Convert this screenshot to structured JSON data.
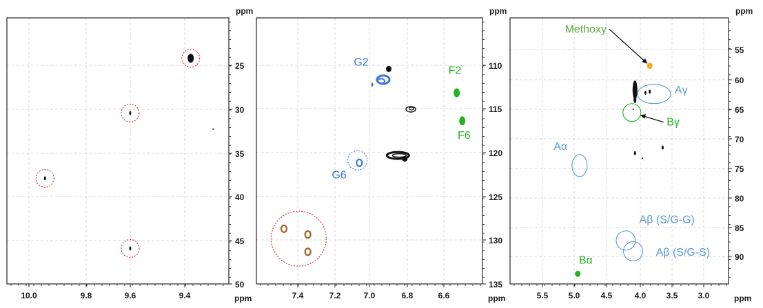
{
  "axis_unit": "ppm",
  "colors": {
    "cross_peak": "#111111",
    "guaiacyl": "#3a78d6",
    "ferulate": "#22b322",
    "sidechain_labels": "#5b9bd5",
    "methoxy_label": "#5aaa3a",
    "methoxy_peak": "#f5a623",
    "aldehyde_peak": "#a0602a",
    "dotted_circles": "#d62b2b",
    "grid": "#d9d9d9"
  },
  "chart_data": [
    {
      "type": "scatter",
      "title": "",
      "xlabel": "ppm",
      "ylabel": "ppm",
      "xlim": [
        10.18,
        9.19
      ],
      "ylim": [
        50,
        17
      ],
      "xticks": [
        "10.0",
        "9.8",
        "9.6",
        "9.4"
      ],
      "yticks": [
        "25",
        "30",
        "35",
        "40",
        "45",
        "50"
      ],
      "grid": true,
      "peaks": [
        {
          "x": 9.36,
          "y": 22.0,
          "color": "cross_peak",
          "size": "large"
        },
        {
          "x": 9.63,
          "y": 28.8,
          "color": "cross_peak",
          "size": "small"
        },
        {
          "x": 10.01,
          "y": 36.9,
          "color": "cross_peak",
          "size": "small"
        },
        {
          "x": 9.63,
          "y": 45.6,
          "color": "cross_peak",
          "size": "small"
        },
        {
          "x": 9.26,
          "y": 30.8,
          "color": "cross_peak",
          "size": "dot"
        }
      ],
      "highlight_circles": [
        {
          "x": 9.36,
          "y": 22.0
        },
        {
          "x": 9.63,
          "y": 28.8
        },
        {
          "x": 10.01,
          "y": 36.9
        },
        {
          "x": 9.63,
          "y": 45.6
        }
      ],
      "labels": []
    },
    {
      "type": "scatter",
      "title": "",
      "xlabel": "ppm",
      "ylabel": "ppm",
      "xlim": [
        7.65,
        6.42
      ],
      "ylim": [
        135,
        102.7
      ],
      "xticks": [
        "7.4",
        "7.2",
        "7.0",
        "6.8",
        "6.6"
      ],
      "yticks": [
        "110",
        "115",
        "120",
        "125",
        "130",
        "135"
      ],
      "grid": true,
      "peaks": [
        {
          "x": 6.93,
          "y": 108.9,
          "color": "cross_peak",
          "size": "medium"
        },
        {
          "x": 6.96,
          "y": 110.2,
          "color": "guaiacyl",
          "size": "cluster"
        },
        {
          "x": 7.02,
          "y": 110.8,
          "color": "guaiacyl",
          "size": "small"
        },
        {
          "x": 6.81,
          "y": 113.8,
          "color": "cross_peak",
          "size": "contour"
        },
        {
          "x": 6.56,
          "y": 111.8,
          "color": "ferulate",
          "size": "large"
        },
        {
          "x": 6.53,
          "y": 115.2,
          "color": "ferulate",
          "size": "large"
        },
        {
          "x": 6.88,
          "y": 119.4,
          "color": "cross_peak",
          "size": "band"
        },
        {
          "x": 7.09,
          "y": 120.3,
          "color": "guaiacyl",
          "size": "ring"
        },
        {
          "x": 7.5,
          "y": 128.3,
          "color": "aldehyde_peak",
          "size": "ring"
        },
        {
          "x": 7.37,
          "y": 129.0,
          "color": "aldehyde_peak",
          "size": "ring"
        },
        {
          "x": 7.37,
          "y": 131.1,
          "color": "aldehyde_peak",
          "size": "ring"
        }
      ],
      "highlight_circles": [
        {
          "x": 7.1,
          "y": 120.0,
          "color": "guaiacyl",
          "r": 14
        },
        {
          "x": 7.42,
          "y": 129.5,
          "color": "dotted_circles",
          "r": 40
        }
      ],
      "labels": [
        {
          "text": "G2",
          "x": 7.08,
          "y": 108.5,
          "color": "guaiacyl"
        },
        {
          "text": "G6",
          "x": 7.2,
          "y": 122.2,
          "color": "guaiacyl"
        },
        {
          "text": "F2",
          "x": 6.57,
          "y": 109.5,
          "color": "ferulate"
        },
        {
          "text": "F6",
          "x": 6.52,
          "y": 117.4,
          "color": "ferulate"
        }
      ]
    },
    {
      "type": "scatter",
      "title": "",
      "xlabel": "ppm",
      "ylabel": "ppm",
      "xlim": [
        6.1,
        2.55
      ],
      "ylim": [
        95.2,
        48.0
      ],
      "xticks": [
        "5.5",
        "5.0",
        "4.5",
        "4.0",
        "3.5",
        "3.0"
      ],
      "yticks": [
        "55",
        "60",
        "65",
        "70",
        "75",
        "80",
        "85",
        "90"
      ],
      "grid": true,
      "peaks": [
        {
          "x": 3.83,
          "y": 56.5,
          "color": "methoxy_peak",
          "size": "medium"
        },
        {
          "x": 4.07,
          "y": 60.8,
          "color": "cross_peak",
          "size": "band"
        },
        {
          "x": 3.9,
          "y": 61.3,
          "color": "cross_peak",
          "size": "small"
        },
        {
          "x": 3.83,
          "y": 61.1,
          "color": "cross_peak",
          "size": "small"
        },
        {
          "x": 4.1,
          "y": 64.2,
          "color": "cross_peak",
          "size": "dot"
        },
        {
          "x": 4.07,
          "y": 72.0,
          "color": "cross_peak",
          "size": "small"
        },
        {
          "x": 3.95,
          "y": 72.9,
          "color": "cross_peak",
          "size": "dot"
        },
        {
          "x": 3.62,
          "y": 71.0,
          "color": "cross_peak",
          "size": "small"
        },
        {
          "x": 5.0,
          "y": 93.4,
          "color": "ferulate",
          "size": "medium"
        }
      ],
      "highlight_circles": [
        {
          "x": 3.76,
          "y": 61.5,
          "rx": 24,
          "ry": 14,
          "color": "sidechain_labels"
        },
        {
          "x": 4.12,
          "y": 64.8,
          "r": 13,
          "color": "ferulate"
        },
        {
          "x": 4.97,
          "y": 74.2,
          "rx": 11,
          "ry": 16,
          "color": "sidechain_labels"
        },
        {
          "x": 4.22,
          "y": 87.5,
          "r": 14,
          "color": "sidechain_labels"
        },
        {
          "x": 4.1,
          "y": 89.4,
          "r": 14,
          "color": "sidechain_labels"
        }
      ],
      "labels": [
        {
          "text": "Methoxy",
          "x": 4.87,
          "y": 50.6,
          "color": "methoxy_label"
        },
        {
          "text": "Aγ",
          "x": 3.32,
          "y": 61.4,
          "color": "sidechain_labels"
        },
        {
          "text": "Bγ",
          "x": 3.45,
          "y": 67.1,
          "color": "ferulate"
        },
        {
          "text": "Aα",
          "x": 5.28,
          "y": 71.4,
          "color": "sidechain_labels"
        },
        {
          "text": "Aβ (S/G-G)",
          "x": 3.55,
          "y": 84.4,
          "color": "sidechain_labels"
        },
        {
          "text": "Aβ (S/G-S)",
          "x": 3.29,
          "y": 90.2,
          "color": "sidechain_labels"
        },
        {
          "text": "Bα",
          "x": 4.87,
          "y": 91.6,
          "color": "ferulate"
        }
      ],
      "arrows": [
        {
          "from_label": "Methoxy",
          "to": {
            "x": 3.83,
            "y": 56.5
          }
        },
        {
          "from_label": "Bγ",
          "to": {
            "x": 4.12,
            "y": 64.8
          }
        }
      ]
    }
  ]
}
